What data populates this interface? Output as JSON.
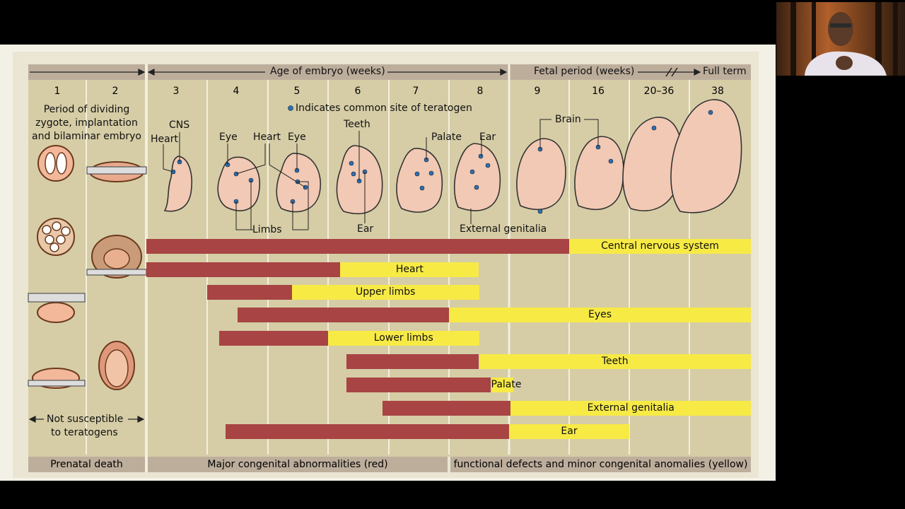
{
  "header": {
    "age_label": "Age of embryo (weeks)",
    "fetal_label": "Fetal period (weeks)",
    "full_term": "Full term",
    "weeks": [
      "1",
      "2",
      "3",
      "4",
      "5",
      "6",
      "7",
      "8",
      "9",
      "16",
      "20–36",
      "38"
    ]
  },
  "legend": {
    "note": "Indicates common site of teratogen"
  },
  "period_text": [
    "Period of dividing",
    "zygote, implantation",
    "and bilaminar embryo"
  ],
  "not_susceptible": [
    "Not susceptible",
    "to  teratogens"
  ],
  "labels": {
    "cns": "CNS",
    "heart1": "Heart",
    "eye1": "Eye",
    "heart2": "Heart",
    "eye2": "Eye",
    "teeth": "Teeth",
    "palate": "Palate",
    "ear_top": "Ear",
    "brain": "Brain",
    "limbs": "Limbs",
    "ear_bottom": "Ear",
    "external_genitalia": "External genitalia"
  },
  "chart_data": {
    "type": "bar",
    "title": "",
    "critical_periods": [
      {
        "name": "Central nervous system",
        "red": [
          3,
          16
        ],
        "yellow": [
          16,
          38
        ]
      },
      {
        "name": "Heart",
        "red": [
          3,
          6.2
        ],
        "yellow": [
          6.2,
          8.5
        ]
      },
      {
        "name": "Upper limbs",
        "red": [
          4,
          5.4
        ],
        "yellow": [
          5.4,
          8.5
        ]
      },
      {
        "name": "Eyes",
        "red": [
          4.5,
          8
        ],
        "yellow": [
          8,
          38
        ]
      },
      {
        "name": "Lower limbs",
        "red": [
          4.2,
          6
        ],
        "yellow": [
          6,
          8.5
        ]
      },
      {
        "name": "Teeth",
        "red": [
          6.3,
          8.5
        ],
        "yellow": [
          8.5,
          38
        ]
      },
      {
        "name": "Palate",
        "red": [
          6.3,
          8.7
        ],
        "yellow": [
          8.7,
          9.5
        ]
      },
      {
        "name": "External genitalia",
        "red": [
          6.9,
          9.2
        ],
        "yellow": [
          9.2,
          38
        ]
      },
      {
        "name": "Ear",
        "red": [
          4.3,
          9
        ],
        "yellow": [
          9,
          20
        ]
      }
    ]
  },
  "footer": {
    "prenatal_death": "Prenatal death",
    "major": "Major congenital abnormalities (red)",
    "minor": "functional defects and minor congenital anomalies (yellow)"
  },
  "colors": {
    "red": "#a84444",
    "yellow": "#f7ea45",
    "panel": "#d6cda6",
    "header": "#bdae9c"
  }
}
